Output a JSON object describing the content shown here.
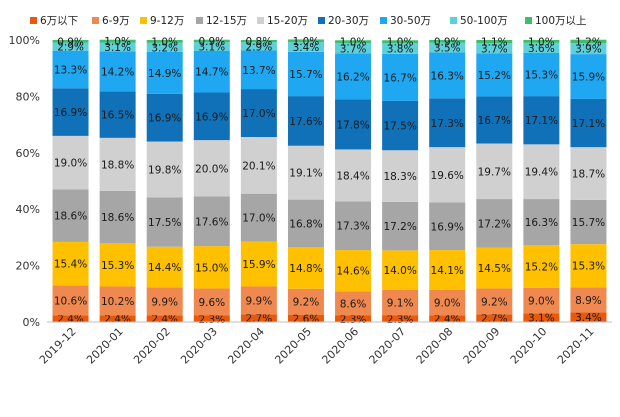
{
  "chart_data": {
    "type": "bar",
    "stacked": true,
    "percent": true,
    "categories": [
      "2019-12",
      "2020-01",
      "2020-02",
      "2020-03",
      "2020-04",
      "2020-05",
      "2020-06",
      "2020-07",
      "2020-08",
      "2020-09",
      "2020-10",
      "2020-11"
    ],
    "y_ticks": [
      "0%",
      "20%",
      "40%",
      "60%",
      "80%",
      "100%"
    ],
    "ylim": [
      0,
      100
    ],
    "grid": false,
    "legend_position": "top",
    "series": [
      {
        "name": "6万以下",
        "color": "#E8590C",
        "values": [
          2.4,
          2.4,
          2.4,
          2.3,
          2.7,
          2.6,
          2.3,
          2.3,
          2.4,
          2.7,
          3.1,
          3.4
        ],
        "labels": [
          "2.4%",
          "2.4%",
          "2.4%",
          "2.3%",
          "2.7%",
          "2.6%",
          "2.3%",
          "2.3%",
          "2.4%",
          "2.7%",
          "3.1%",
          "3.4%"
        ]
      },
      {
        "name": "6-9万",
        "color": "#F0894F",
        "values": [
          10.6,
          10.2,
          9.9,
          9.6,
          9.9,
          9.2,
          8.6,
          9.1,
          9.0,
          9.2,
          9.0,
          8.9
        ],
        "labels": [
          "10.6%",
          "10.2%",
          "9.9%",
          "9.6%",
          "9.9%",
          "9.2%",
          "8.6%",
          "9.1%",
          "9.0%",
          "9.2%",
          "9.0%",
          "8.9%"
        ]
      },
      {
        "name": "9-12万",
        "color": "#FFC000",
        "values": [
          15.4,
          15.3,
          14.4,
          15.0,
          15.9,
          14.8,
          14.6,
          14.0,
          14.1,
          14.5,
          15.2,
          15.3
        ],
        "labels": [
          "15.4%",
          "15.3%",
          "14.4%",
          "15.0%",
          "15.9%",
          "14.8%",
          "14.6%",
          "14.0%",
          "14.1%",
          "14.5%",
          "15.2%",
          "15.3%"
        ]
      },
      {
        "name": "12-15万",
        "color": "#A6A6A6",
        "values": [
          18.6,
          18.6,
          17.5,
          17.6,
          17.0,
          16.8,
          17.3,
          17.2,
          16.9,
          17.2,
          16.3,
          15.7
        ],
        "labels": [
          "18.6%",
          "18.6%",
          "17.5%",
          "17.6%",
          "17.0%",
          "16.8%",
          "17.3%",
          "17.2%",
          "16.9%",
          "17.2%",
          "16.3%",
          "15.7%"
        ]
      },
      {
        "name": "15-20万",
        "color": "#D0D0D0",
        "values": [
          19.0,
          18.8,
          19.8,
          20.0,
          20.1,
          19.1,
          18.4,
          18.3,
          19.6,
          19.7,
          19.4,
          18.7
        ],
        "labels": [
          "19.0%",
          "18.8%",
          "19.8%",
          "20.0%",
          "20.1%",
          "19.1%",
          "18.4%",
          "18.3%",
          "19.6%",
          "19.7%",
          "19.4%",
          "18.7%"
        ]
      },
      {
        "name": "20-30万",
        "color": "#1070B8",
        "values": [
          16.9,
          16.5,
          16.9,
          16.9,
          17.0,
          17.6,
          17.8,
          17.5,
          17.3,
          16.7,
          17.1,
          17.1
        ],
        "labels": [
          "16.9%",
          "16.5%",
          "16.9%",
          "16.9%",
          "17.0%",
          "17.6%",
          "17.8%",
          "17.5%",
          "17.3%",
          "16.7%",
          "17.1%",
          "17.1%"
        ]
      },
      {
        "name": "30-50万",
        "color": "#1FA7F2",
        "values": [
          13.3,
          14.2,
          14.9,
          14.7,
          13.7,
          15.7,
          16.2,
          16.7,
          16.3,
          15.2,
          15.3,
          15.9
        ],
        "labels": [
          "13.3%",
          "14.2%",
          "14.9%",
          "14.7%",
          "13.7%",
          "15.7%",
          "16.2%",
          "16.7%",
          "16.3%",
          "15.2%",
          "15.3%",
          "15.9%"
        ]
      },
      {
        "name": "50-100万",
        "color": "#5CD1D9",
        "values": [
          2.9,
          3.1,
          3.2,
          3.1,
          2.9,
          3.4,
          3.7,
          3.8,
          3.5,
          3.7,
          3.6,
          3.9
        ],
        "labels": [
          "2.9%",
          "3.1%",
          "3.2%",
          "3.1%",
          "2.9%",
          "3.4%",
          "3.7%",
          "3.8%",
          "3.5%",
          "3.7%",
          "3.6%",
          "3.9%"
        ]
      },
      {
        "name": "100万以上",
        "color": "#3DBE6B",
        "values": [
          0.9,
          1.0,
          1.0,
          0.9,
          0.8,
          1.0,
          1.0,
          1.0,
          0.9,
          1.1,
          1.0,
          1.2
        ],
        "labels": [
          "0.9%",
          "1.0%",
          "1.0%",
          "0.9%",
          "0.8%",
          "1.0%",
          "1.0%",
          "1.0%",
          "0.9%",
          "1.1%",
          "1.0%",
          "1.2%"
        ]
      }
    ]
  }
}
